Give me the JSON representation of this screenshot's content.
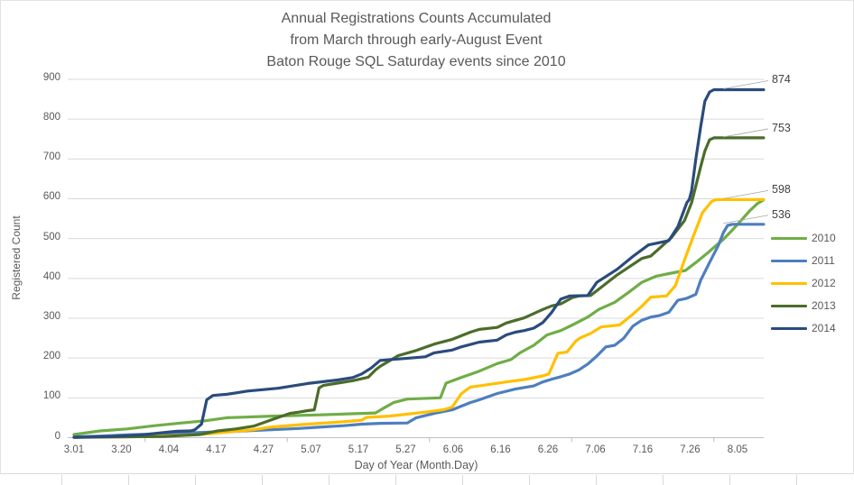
{
  "chart_data": {
    "type": "line",
    "title_lines": [
      "Annual Registrations Counts Accumulated",
      "from March through early-August Event",
      "Baton Rouge SQL Saturday events since 2010"
    ],
    "y_axis": {
      "label": "Registered Count",
      "min": 0,
      "max": 900,
      "tick_step": 100,
      "tick_labels": [
        "0",
        "100",
        "200",
        "300",
        "400",
        "500",
        "600",
        "700",
        "800",
        "900"
      ]
    },
    "x_axis": {
      "label": "Day of Year (Month.Day)",
      "tick_labels": [
        "3.01",
        "3.20",
        "4.04",
        "4.17",
        "4.27",
        "5.07",
        "5.17",
        "5.27",
        "6.06",
        "6.16",
        "6.26",
        "7.06",
        "7.16",
        "7.26",
        "8.05"
      ]
    },
    "legend": {
      "position": "right",
      "entries": [
        {
          "label": "2010",
          "color": "#70AD47"
        },
        {
          "label": "2011",
          "color": "#4D7EBF"
        },
        {
          "label": "2012",
          "color": "#FFC000"
        },
        {
          "label": "2013",
          "color": "#4C6C29"
        },
        {
          "label": "2014",
          "color": "#2A4B7C"
        }
      ]
    },
    "end_labels": [
      {
        "text": "874",
        "series": "2014",
        "value": 874
      },
      {
        "text": "753",
        "series": "2013",
        "value": 753
      },
      {
        "text": "598",
        "series": "2012",
        "value": 598
      },
      {
        "text": "536",
        "series": "2011",
        "value": 536
      }
    ],
    "grid": true,
    "x_unit": "tick-index (0 = 3.01 … 14 = 8.05, axis extends to 14.55)",
    "series": [
      {
        "name": "2010",
        "color": "#70AD47",
        "final_value": 597,
        "points": [
          [
            0,
            8
          ],
          [
            0.55,
            17
          ],
          [
            1.12,
            22
          ],
          [
            1.7,
            30
          ],
          [
            2.27,
            37
          ],
          [
            2.74,
            42
          ],
          [
            3.22,
            50
          ],
          [
            4.17,
            54
          ],
          [
            5.12,
            57
          ],
          [
            6.36,
            62
          ],
          [
            6.5,
            72
          ],
          [
            6.74,
            88
          ],
          [
            7.03,
            97
          ],
          [
            7.73,
            100
          ],
          [
            7.85,
            137
          ],
          [
            8.17,
            151
          ],
          [
            8.55,
            167
          ],
          [
            8.93,
            186
          ],
          [
            9.22,
            196
          ],
          [
            9.41,
            213
          ],
          [
            9.7,
            232
          ],
          [
            9.98,
            258
          ],
          [
            10.27,
            269
          ],
          [
            10.55,
            285
          ],
          [
            10.84,
            303
          ],
          [
            11.07,
            322
          ],
          [
            11.41,
            340
          ],
          [
            11.7,
            365
          ],
          [
            11.98,
            390
          ],
          [
            12.27,
            405
          ],
          [
            12.55,
            412
          ],
          [
            12.9,
            420
          ],
          [
            13.12,
            440
          ],
          [
            13.35,
            462
          ],
          [
            13.5,
            478
          ],
          [
            13.7,
            498
          ],
          [
            13.88,
            520
          ],
          [
            14.07,
            545
          ],
          [
            14.26,
            570
          ],
          [
            14.42,
            588
          ],
          [
            14.55,
            597
          ]
        ]
      },
      {
        "name": "2011",
        "color": "#4D7EBF",
        "final_value": 536,
        "points": [
          [
            0,
            2
          ],
          [
            0.55,
            4
          ],
          [
            1.12,
            7
          ],
          [
            1.7,
            9
          ],
          [
            2.27,
            11
          ],
          [
            2.84,
            14
          ],
          [
            3.41,
            16
          ],
          [
            4.17,
            20
          ],
          [
            4.74,
            23
          ],
          [
            5.12,
            26
          ],
          [
            5.69,
            30
          ],
          [
            6.07,
            34
          ],
          [
            6.46,
            36
          ],
          [
            7.03,
            37
          ],
          [
            7.22,
            50
          ],
          [
            7.6,
            61
          ],
          [
            7.98,
            70
          ],
          [
            8.36,
            88
          ],
          [
            8.55,
            95
          ],
          [
            8.93,
            111
          ],
          [
            9.31,
            122
          ],
          [
            9.7,
            130
          ],
          [
            9.89,
            140
          ],
          [
            10.08,
            147
          ],
          [
            10.27,
            153
          ],
          [
            10.46,
            160
          ],
          [
            10.65,
            170
          ],
          [
            10.84,
            185
          ],
          [
            11.03,
            205
          ],
          [
            11.22,
            228
          ],
          [
            11.41,
            232
          ],
          [
            11.6,
            250
          ],
          [
            11.79,
            280
          ],
          [
            11.98,
            295
          ],
          [
            12.17,
            303
          ],
          [
            12.36,
            307
          ],
          [
            12.55,
            315
          ],
          [
            12.74,
            345
          ],
          [
            12.93,
            350
          ],
          [
            13.12,
            360
          ],
          [
            13.22,
            395
          ],
          [
            13.41,
            440
          ],
          [
            13.6,
            484
          ],
          [
            13.7,
            515
          ],
          [
            13.79,
            533
          ],
          [
            13.89,
            536
          ],
          [
            14.55,
            536
          ]
        ]
      },
      {
        "name": "2012",
        "color": "#FFC000",
        "final_value": 598,
        "points": [
          [
            0,
            1
          ],
          [
            1.12,
            2
          ],
          [
            1.89,
            4
          ],
          [
            2.65,
            8
          ],
          [
            3.22,
            14
          ],
          [
            3.79,
            20
          ],
          [
            4.17,
            27
          ],
          [
            4.93,
            34
          ],
          [
            5.69,
            40
          ],
          [
            6.07,
            44
          ],
          [
            6.17,
            51
          ],
          [
            6.65,
            54
          ],
          [
            7.03,
            59
          ],
          [
            7.41,
            64
          ],
          [
            7.79,
            70
          ],
          [
            7.98,
            77
          ],
          [
            8.17,
            110
          ],
          [
            8.36,
            127
          ],
          [
            8.55,
            130
          ],
          [
            9.12,
            140
          ],
          [
            9.5,
            146
          ],
          [
            9.89,
            155
          ],
          [
            10.02,
            160
          ],
          [
            10.21,
            212
          ],
          [
            10.4,
            215
          ],
          [
            10.59,
            243
          ],
          [
            10.69,
            251
          ],
          [
            10.9,
            262
          ],
          [
            11.12,
            278
          ],
          [
            11.51,
            283
          ],
          [
            11.79,
            310
          ],
          [
            11.98,
            330
          ],
          [
            12.17,
            353
          ],
          [
            12.5,
            356
          ],
          [
            12.69,
            382
          ],
          [
            12.88,
            446
          ],
          [
            13.07,
            507
          ],
          [
            13.26,
            565
          ],
          [
            13.45,
            593
          ],
          [
            13.55,
            598
          ],
          [
            14.55,
            598
          ]
        ]
      },
      {
        "name": "2013",
        "color": "#4C6C29",
        "final_value": 753,
        "points": [
          [
            0,
            1
          ],
          [
            1.89,
            3
          ],
          [
            2.65,
            8
          ],
          [
            3.03,
            17
          ],
          [
            3.41,
            22
          ],
          [
            3.79,
            29
          ],
          [
            4.17,
            45
          ],
          [
            4.55,
            61
          ],
          [
            4.74,
            64
          ],
          [
            4.93,
            68
          ],
          [
            5.07,
            70
          ],
          [
            5.17,
            125
          ],
          [
            5.26,
            131
          ],
          [
            5.56,
            137
          ],
          [
            5.88,
            143
          ],
          [
            6.21,
            152
          ],
          [
            6.36,
            170
          ],
          [
            6.46,
            179
          ],
          [
            6.84,
            206
          ],
          [
            7.22,
            219
          ],
          [
            7.6,
            235
          ],
          [
            7.98,
            247
          ],
          [
            8.36,
            265
          ],
          [
            8.55,
            272
          ],
          [
            8.93,
            277
          ],
          [
            9.12,
            288
          ],
          [
            9.5,
            301
          ],
          [
            9.89,
            322
          ],
          [
            10.08,
            331
          ],
          [
            10.27,
            336
          ],
          [
            10.52,
            352
          ],
          [
            10.65,
            356
          ],
          [
            10.9,
            357
          ],
          [
            11.46,
            409
          ],
          [
            11.98,
            450
          ],
          [
            12.17,
            456
          ],
          [
            12.6,
            502
          ],
          [
            12.88,
            545
          ],
          [
            13.03,
            590
          ],
          [
            13.22,
            680
          ],
          [
            13.31,
            720
          ],
          [
            13.41,
            748
          ],
          [
            13.5,
            753
          ],
          [
            14.55,
            753
          ]
        ]
      },
      {
        "name": "2014",
        "color": "#2A4B7C",
        "final_value": 874,
        "points": [
          [
            0,
            1
          ],
          [
            0.74,
            3
          ],
          [
            1.12,
            5
          ],
          [
            1.5,
            8
          ],
          [
            1.89,
            13
          ],
          [
            2.17,
            16
          ],
          [
            2.46,
            17
          ],
          [
            2.55,
            20
          ],
          [
            2.69,
            34
          ],
          [
            2.8,
            95
          ],
          [
            2.93,
            106
          ],
          [
            3.22,
            109
          ],
          [
            3.66,
            117
          ],
          [
            4.3,
            124
          ],
          [
            4.93,
            136
          ],
          [
            5.56,
            145
          ],
          [
            5.88,
            151
          ],
          [
            6.07,
            160
          ],
          [
            6.27,
            175
          ],
          [
            6.46,
            194
          ],
          [
            7.09,
            200
          ],
          [
            7.41,
            203
          ],
          [
            7.6,
            213
          ],
          [
            7.98,
            220
          ],
          [
            8.17,
            228
          ],
          [
            8.55,
            240
          ],
          [
            8.93,
            245
          ],
          [
            9.12,
            258
          ],
          [
            9.31,
            265
          ],
          [
            9.5,
            269
          ],
          [
            9.7,
            275
          ],
          [
            9.89,
            289
          ],
          [
            10.08,
            315
          ],
          [
            10.27,
            348
          ],
          [
            10.46,
            356
          ],
          [
            10.84,
            357
          ],
          [
            11.03,
            390
          ],
          [
            11.46,
            423
          ],
          [
            11.79,
            455
          ],
          [
            12.12,
            484
          ],
          [
            12.55,
            495
          ],
          [
            12.74,
            530
          ],
          [
            12.93,
            590
          ],
          [
            12.98,
            598
          ],
          [
            13.03,
            620
          ],
          [
            13.12,
            700
          ],
          [
            13.22,
            780
          ],
          [
            13.31,
            845
          ],
          [
            13.41,
            868
          ],
          [
            13.5,
            874
          ],
          [
            14.55,
            874
          ]
        ]
      }
    ]
  }
}
